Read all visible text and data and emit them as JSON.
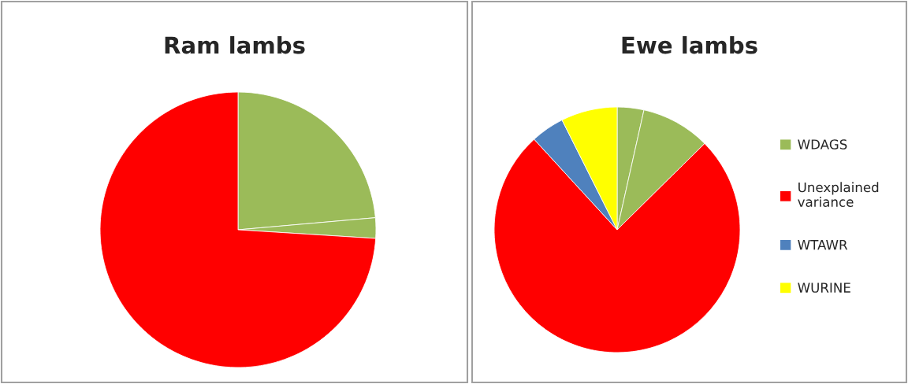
{
  "chart_data": [
    {
      "type": "pie",
      "title": "Ram lambs",
      "categories": [
        null,
        null,
        null
      ],
      "values": [
        23.6,
        2.4,
        74.0
      ],
      "colors": [
        "#9bbb59",
        "#9bbb59",
        "#ff0000"
      ]
    },
    {
      "type": "pie",
      "title": "Ewe lambs",
      "categories": [
        "WDAGS",
        null,
        "Unexplained\nvariance",
        "WTAWR",
        "WURINE"
      ],
      "values": [
        3.5,
        9.1,
        75.6,
        4.4,
        7.4
      ],
      "colors": [
        "#9bbb59",
        "#9bbb59",
        "#ff0000",
        "#4f81bd",
        "#ffff00"
      ],
      "legend": "right"
    }
  ]
}
